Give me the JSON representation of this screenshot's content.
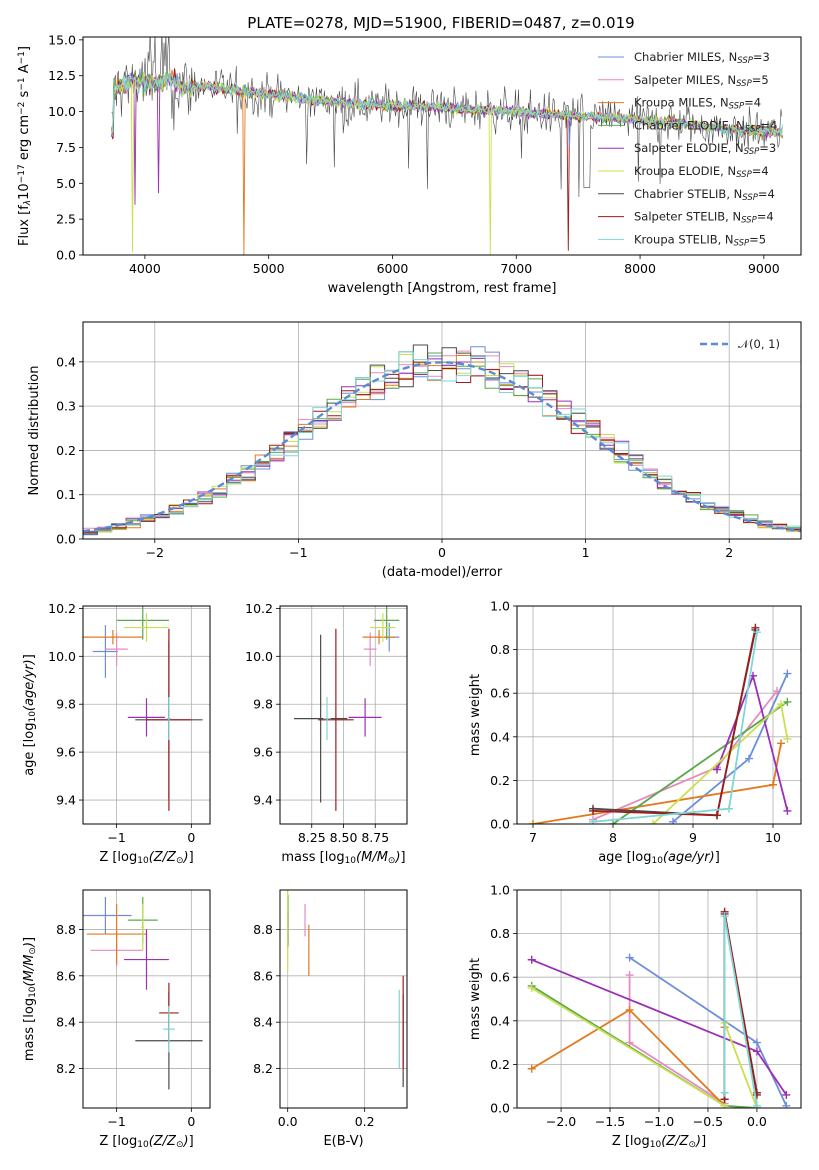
{
  "figure": {
    "title": "PLATE=0278, MJD=51900, FIBERID=0487, z=0.019"
  },
  "colors": {
    "Chabrier MILES": "#6b8fdb",
    "Salpeter MILES": "#e68ac0",
    "Kroupa MILES": "#e07b20",
    "Chabrier ELODIE": "#5aa84a",
    "Salpeter ELODIE": "#9b2fb5",
    "Kroupa ELODIE": "#c9e050",
    "Chabrier STELIB": "#4a4a4a",
    "Salpeter STELIB": "#9e1c1c",
    "Kroupa STELIB": "#7fd6d6",
    "gaussian": "#5b8ad6",
    "grid": "#b0b0b0"
  },
  "chart_data": [
    {
      "id": "spectrum",
      "type": "line",
      "title": "PLATE=0278, MJD=51900, FIBERID=0487, z=0.019",
      "xlabel": "wavelength [Angstrom, rest frame]",
      "ylabel": "Flux [f_λ 10^-17 erg cm^-2 s^-1 A^-1]",
      "ylabel_parts": [
        "Flux [f",
        "λ",
        "10",
        "−17",
        " erg cm",
        "−2",
        " s",
        "−1",
        " A",
        "−1",
        "]"
      ],
      "xlim": [
        3500,
        9300
      ],
      "ylim": [
        0,
        15.2
      ],
      "xticks": [
        "4000",
        "5000",
        "6000",
        "7000",
        "8000",
        "9000"
      ],
      "xtick_values": [
        4000,
        5000,
        6000,
        7000,
        8000,
        9000
      ],
      "yticks": [
        "0.0",
        "2.5",
        "5.0",
        "7.5",
        "10.0",
        "12.5",
        "15.0"
      ],
      "ytick_values": [
        0,
        2.5,
        5,
        7.5,
        10,
        12.5,
        15
      ],
      "legend": "top-right",
      "grid": false,
      "series_envelope": {
        "x": [
          3750,
          3900,
          4000,
          4100,
          4200,
          4300,
          4500,
          4700,
          5000,
          5200,
          5400,
          5600,
          5800,
          6000,
          6200,
          6500,
          6800,
          7000,
          7300,
          7500,
          7700,
          7900,
          8100,
          8300,
          8500,
          8600,
          8700,
          8800,
          9000,
          9100
        ],
        "y": [
          11.5,
          12.2,
          12.0,
          12.0,
          12.3,
          11.7,
          11.8,
          11.5,
          11.2,
          11.0,
          10.8,
          10.6,
          10.5,
          10.4,
          10.4,
          10.2,
          10.1,
          10.0,
          9.8,
          9.7,
          9.6,
          9.5,
          9.3,
          9.2,
          9.0,
          8.9,
          8.8,
          8.7,
          8.6,
          8.6
        ]
      },
      "series": [
        {
          "name": "Chabrier MILES",
          "nssp": "3"
        },
        {
          "name": "Salpeter MILES",
          "nssp": "5"
        },
        {
          "name": "Kroupa MILES",
          "nssp": "4"
        },
        {
          "name": "Chabrier ELODIE",
          "nssp": "4"
        },
        {
          "name": "Salpeter ELODIE",
          "nssp": "3"
        },
        {
          "name": "Kroupa ELODIE",
          "nssp": "4"
        },
        {
          "name": "Chabrier STELIB",
          "nssp": "4"
        },
        {
          "name": "Salpeter STELIB",
          "nssp": "4"
        },
        {
          "name": "Kroupa STELIB",
          "nssp": "5"
        }
      ]
    },
    {
      "id": "residuals",
      "type": "line",
      "xlabel": "(data-model)/error",
      "ylabel": "Normed distribution",
      "xlim": [
        -2.5,
        2.5
      ],
      "ylim": [
        0,
        0.49
      ],
      "xticks": [
        "−2",
        "−1",
        "0",
        "1",
        "2"
      ],
      "xtick_values": [
        -2,
        -1,
        0,
        1,
        2
      ],
      "yticks": [
        "0.0",
        "0.1",
        "0.2",
        "0.3",
        "0.4"
      ],
      "ytick_values": [
        0,
        0.1,
        0.2,
        0.3,
        0.4
      ],
      "legend": "top-right",
      "legend_label": "𝒩(0, 1)",
      "grid": true,
      "bin_width": 0.1
    },
    {
      "id": "age-vs-Z",
      "type": "scatter",
      "xlabel": "Z [log10(Z/Z⊙)]",
      "ylabel": "age  [log10(age/yr)]",
      "xlim": [
        -1.45,
        0.25
      ],
      "ylim": [
        9.3,
        10.21
      ],
      "xticks": [
        "−1",
        "0"
      ],
      "xtick_values": [
        -1,
        0
      ],
      "yticks": [
        "9.4",
        "9.6",
        "9.8",
        "10.0",
        "10.2"
      ],
      "ytick_values": [
        9.4,
        9.6,
        9.8,
        10.0,
        10.2
      ],
      "grid": true,
      "points": [
        {
          "series": "Chabrier MILES",
          "x": -1.15,
          "y": 10.02,
          "xerr": 0.17,
          "yerr": 0.11
        },
        {
          "series": "Salpeter MILES",
          "x": -1.0,
          "y": 10.03,
          "xerr": 0.15,
          "yerr": 0.07
        },
        {
          "series": "Kroupa MILES",
          "x": -1.05,
          "y": 10.08,
          "xerr": 0.4,
          "yerr": 0.03
        },
        {
          "series": "Chabrier ELODIE",
          "x": -0.65,
          "y": 10.15,
          "xerr": 0.35,
          "yerr": 0.08
        },
        {
          "series": "Salpeter ELODIE",
          "x": -0.6,
          "y": 9.745,
          "xerr": 0.25,
          "yerr": 0.08
        },
        {
          "series": "Kroupa ELODIE",
          "x": -0.6,
          "y": 10.12,
          "xerr": 0.3,
          "yerr": 0.06
        },
        {
          "series": "Chabrier STELIB",
          "x": -0.3,
          "y": 9.735,
          "xerr": 0.45,
          "yerr": 0.33
        },
        {
          "series": "Salpeter STELIB",
          "x": -0.3,
          "y": 9.735,
          "xerr": 0.3,
          "yerr": 0.38
        },
        {
          "series": "Kroupa STELIB",
          "x": -0.3,
          "y": 9.74,
          "xerr": 0.03,
          "yerr": 0.09
        }
      ]
    },
    {
      "id": "age-vs-mass",
      "type": "scatter",
      "xlabel": "mass [log10(M/M⊙)]",
      "ylabel": "",
      "xlim": [
        8.0,
        9.0
      ],
      "ylim": [
        9.3,
        10.21
      ],
      "xticks": [
        "8.25",
        "8.50",
        "8.75"
      ],
      "xtick_values": [
        8.25,
        8.5,
        8.75
      ],
      "yticks": [
        "9.4",
        "9.6",
        "9.8",
        "10.0",
        "10.2"
      ],
      "ytick_values": [
        9.4,
        9.6,
        9.8,
        10.0,
        10.2
      ],
      "grid": true,
      "points": [
        {
          "series": "Chabrier MILES",
          "x": 8.86,
          "y": 10.08,
          "xerr": 0.08,
          "yerr": 0.06
        },
        {
          "series": "Salpeter MILES",
          "x": 8.71,
          "y": 10.03,
          "xerr": 0.05,
          "yerr": 0.07
        },
        {
          "series": "Kroupa MILES",
          "x": 8.78,
          "y": 10.08,
          "xerr": 0.13,
          "yerr": 0.03
        },
        {
          "series": "Chabrier ELODIE",
          "x": 8.84,
          "y": 10.15,
          "xerr": 0.1,
          "yerr": 0.08
        },
        {
          "series": "Salpeter ELODIE",
          "x": 8.67,
          "y": 9.745,
          "xerr": 0.13,
          "yerr": 0.08
        },
        {
          "series": "Kroupa ELODIE",
          "x": 8.81,
          "y": 10.12,
          "xerr": 0.1,
          "yerr": 0.06
        },
        {
          "series": "Chabrier STELIB",
          "x": 8.32,
          "y": 9.74,
          "xerr": 0.21,
          "yerr": 0.35
        },
        {
          "series": "Salpeter STELIB",
          "x": 8.44,
          "y": 9.735,
          "xerr": 0.14,
          "yerr": 0.38
        },
        {
          "series": "Kroupa STELIB",
          "x": 8.37,
          "y": 9.74,
          "xerr": 0.03,
          "yerr": 0.09
        }
      ]
    },
    {
      "id": "mass-weight-vs-age",
      "type": "line",
      "xlabel": "age  [log10(age/yr)]",
      "ylabel": "mass weight",
      "xlim": [
        6.8,
        10.35
      ],
      "ylim": [
        0,
        1.0
      ],
      "xticks": [
        "7",
        "8",
        "9",
        "10"
      ],
      "xtick_values": [
        7,
        8,
        9,
        10
      ],
      "yticks": [
        "0.0",
        "0.2",
        "0.4",
        "0.6",
        "0.8",
        "1.0"
      ],
      "ytick_values": [
        0,
        0.2,
        0.4,
        0.6,
        0.8,
        1.0
      ],
      "grid": true,
      "series": [
        {
          "series": "Chabrier MILES",
          "x": [
            8.75,
            9.7,
            10.18
          ],
          "y": [
            0.01,
            0.3,
            0.69
          ]
        },
        {
          "series": "Salpeter MILES",
          "x": [
            7.75,
            9.3,
            10.05
          ],
          "y": [
            0.02,
            0.26,
            0.61
          ]
        },
        {
          "series": "Kroupa MILES",
          "x": [
            7.0,
            10.0,
            10.1
          ],
          "y": [
            0.0,
            0.18,
            0.37
          ]
        },
        {
          "series": "Chabrier ELODIE",
          "x": [
            8.0,
            10.18
          ],
          "y": [
            0.0,
            0.56
          ]
        },
        {
          "series": "Salpeter ELODIE",
          "x": [
            9.3,
            9.75,
            10.18
          ],
          "y": [
            0.25,
            0.68,
            0.06
          ]
        },
        {
          "series": "Kroupa ELODIE",
          "x": [
            8.5,
            10.1,
            10.18
          ],
          "y": [
            0.0,
            0.55,
            0.39
          ]
        },
        {
          "series": "Chabrier STELIB",
          "x": [
            7.75,
            9.3,
            9.78
          ],
          "y": [
            0.07,
            0.04,
            0.89
          ]
        },
        {
          "series": "Salpeter STELIB",
          "x": [
            7.75,
            9.3,
            9.78
          ],
          "y": [
            0.06,
            0.04,
            0.9
          ]
        },
        {
          "series": "Kroupa STELIB",
          "x": [
            7.75,
            9.45,
            9.8
          ],
          "y": [
            0.01,
            0.07,
            0.88
          ]
        }
      ]
    },
    {
      "id": "mass-vs-Z",
      "type": "scatter",
      "xlabel": "Z [log10(Z/Z⊙)]",
      "ylabel": "mass [log10(M/M⊙)]",
      "xlim": [
        -1.45,
        0.25
      ],
      "ylim": [
        8.03,
        8.97
      ],
      "xticks": [
        "−1",
        "0"
      ],
      "xtick_values": [
        -1,
        0
      ],
      "yticks": [
        "8.2",
        "8.4",
        "8.6",
        "8.8"
      ],
      "ytick_values": [
        8.2,
        8.4,
        8.6,
        8.8
      ],
      "grid": true,
      "points": [
        {
          "series": "Chabrier MILES",
          "x": -1.15,
          "y": 8.86,
          "xerr": 0.35,
          "yerr": 0.08
        },
        {
          "series": "Salpeter MILES",
          "x": -1.0,
          "y": 8.71,
          "xerr": 0.35,
          "yerr": 0.07
        },
        {
          "series": "Kroupa MILES",
          "x": -1.0,
          "y": 8.78,
          "xerr": 0.4,
          "yerr": 0.13
        },
        {
          "series": "Chabrier ELODIE",
          "x": -0.65,
          "y": 8.84,
          "xerr": 0.2,
          "yerr": 0.1
        },
        {
          "series": "Salpeter ELODIE",
          "x": -0.6,
          "y": 8.67,
          "xerr": 0.3,
          "yerr": 0.13
        },
        {
          "series": "Kroupa ELODIE",
          "x": -0.65,
          "y": 8.81,
          "xerr": 0.02,
          "yerr": 0.1
        },
        {
          "series": "Chabrier STELIB",
          "x": -0.3,
          "y": 8.32,
          "xerr": 0.45,
          "yerr": 0.21
        },
        {
          "series": "Salpeter STELIB",
          "x": -0.3,
          "y": 8.44,
          "xerr": 0.13,
          "yerr": 0.13
        },
        {
          "series": "Kroupa STELIB",
          "x": -0.3,
          "y": 8.37,
          "xerr": 0.08,
          "yerr": 0.1
        }
      ]
    },
    {
      "id": "mass-vs-ebv",
      "type": "scatter",
      "xlabel": "E(B-V)",
      "ylabel": "",
      "xlim": [
        -0.02,
        0.31
      ],
      "ylim": [
        8.03,
        8.97
      ],
      "xticks": [
        "0.0",
        "0.2"
      ],
      "xtick_values": [
        0,
        0.2
      ],
      "yticks": [
        "8.2",
        "8.4",
        "8.6",
        "8.8"
      ],
      "ytick_values": [
        8.2,
        8.4,
        8.6,
        8.8
      ],
      "grid": true,
      "points": [
        {
          "series": "Chabrier MILES",
          "x": 0.0,
          "y": 8.86,
          "yerr": 0.08
        },
        {
          "series": "Salpeter MILES",
          "x": 0.045,
          "y": 8.84,
          "yerr": 0.07
        },
        {
          "series": "Kroupa MILES",
          "x": 0.055,
          "y": 8.71,
          "yerr": 0.11
        },
        {
          "series": "Chabrier ELODIE",
          "x": 0.001,
          "y": 8.84,
          "yerr": 0.11
        },
        {
          "series": "Salpeter ELODIE",
          "x": 0.0,
          "y": 8.8,
          "yerr": 0.08
        },
        {
          "series": "Kroupa ELODIE",
          "x": 0.0,
          "y": 8.8,
          "yerr": 0.18
        },
        {
          "series": "Chabrier STELIB",
          "x": 0.3,
          "y": 8.32,
          "yerr": 0.2
        },
        {
          "series": "Salpeter STELIB",
          "x": 0.3,
          "y": 8.4,
          "yerr": 0.2
        },
        {
          "series": "Kroupa STELIB",
          "x": 0.29,
          "y": 8.37,
          "yerr": 0.17
        }
      ]
    },
    {
      "id": "mass-weight-vs-Z",
      "type": "line",
      "xlabel": "Z [log10(Z/Z⊙)]",
      "ylabel": "mass weight",
      "xlim": [
        -2.45,
        0.45
      ],
      "ylim": [
        0,
        1.0
      ],
      "xticks": [
        "−2.0",
        "−1.5",
        "−1.0",
        "−0.5",
        "0.0"
      ],
      "xtick_values": [
        -2,
        -1.5,
        -1,
        -0.5,
        0
      ],
      "yticks": [
        "0.0",
        "0.2",
        "0.4",
        "0.6",
        "0.8",
        "1.0"
      ],
      "ytick_values": [
        0,
        0.2,
        0.4,
        0.6,
        0.8,
        1.0
      ],
      "grid": true,
      "series": [
        {
          "series": "Chabrier MILES",
          "x": [
            -1.3,
            0.0,
            0.3
          ],
          "y": [
            0.69,
            0.3,
            0.01
          ]
        },
        {
          "series": "Salpeter MILES",
          "x": [
            -1.3,
            -1.3,
            -0.33
          ],
          "y": [
            0.61,
            0.3,
            0.02
          ]
        },
        {
          "series": "Kroupa MILES",
          "x": [
            -2.3,
            -1.3,
            -0.33,
            -0.33
          ],
          "y": [
            0.18,
            0.45,
            0.01,
            0.37
          ]
        },
        {
          "series": "Chabrier ELODIE",
          "x": [
            -2.3,
            -0.33,
            0.0
          ],
          "y": [
            0.56,
            0.01,
            0.0
          ]
        },
        {
          "series": "Salpeter ELODIE",
          "x": [
            -2.3,
            0.0,
            0.3
          ],
          "y": [
            0.68,
            0.26,
            0.06
          ]
        },
        {
          "series": "Kroupa ELODIE",
          "x": [
            -2.3,
            -0.33,
            -0.33,
            0.0
          ],
          "y": [
            0.55,
            0.01,
            0.39,
            0.0
          ]
        },
        {
          "series": "Chabrier STELIB",
          "x": [
            -0.33,
            -0.33,
            0.0
          ],
          "y": [
            0.04,
            0.89,
            0.07
          ]
        },
        {
          "series": "Salpeter STELIB",
          "x": [
            -0.33,
            -0.33,
            0.0
          ],
          "y": [
            0.04,
            0.9,
            0.06
          ]
        },
        {
          "series": "Kroupa STELIB",
          "x": [
            -0.33,
            -0.33,
            0.0
          ],
          "y": [
            0.07,
            0.88,
            0.01
          ]
        }
      ]
    }
  ]
}
